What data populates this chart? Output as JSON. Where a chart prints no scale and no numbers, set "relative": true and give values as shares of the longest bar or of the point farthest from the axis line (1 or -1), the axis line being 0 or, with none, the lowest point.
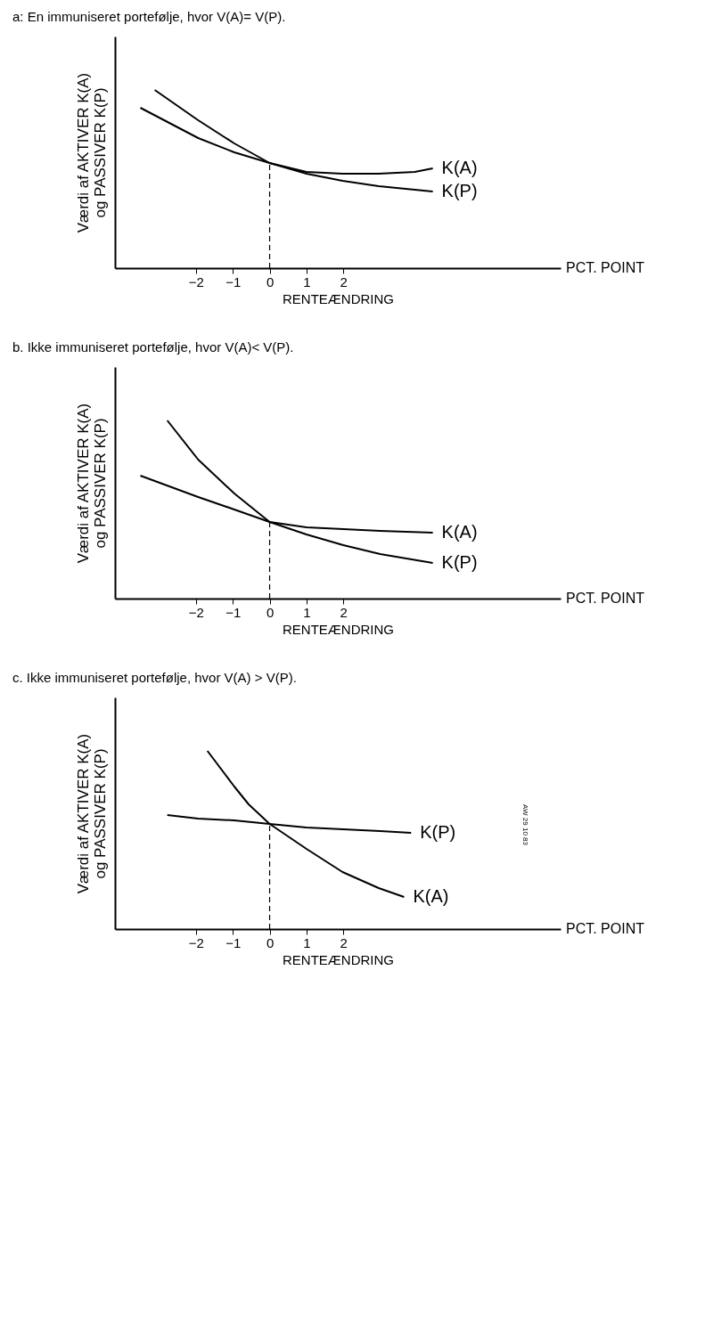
{
  "chart_data": [
    {
      "type": "line",
      "title": "a:   En immuniseret portefølje, hvor V(A)= V(P).",
      "xlabel": "RENTEÆNDRING",
      "ylabel": "Værdi af AKTIVER K(A)\nog PASSIVER K(P)",
      "relative": true,
      "xlim": [
        -4.2,
        7.9
      ],
      "xticks": [
        -2,
        -1,
        0,
        1,
        2
      ],
      "grid": false,
      "legend": false,
      "marker": "none",
      "line_style": "solid",
      "ref_lines": [
        {
          "axis": "x",
          "value": 0,
          "line_style": "dashed"
        }
      ],
      "annotations": [
        "PCT. POINT"
      ],
      "series": [
        {
          "name": "K(A)",
          "color": "#000000",
          "x": [
            -3.12,
            -1.94,
            -0.96,
            0,
            1,
            1.98,
            2.96,
            3.94,
            4.43
          ],
          "values": [
            1,
            0.83,
            0.7,
            0.59,
            0.54,
            0.53,
            0.53,
            0.54,
            0.56
          ]
        },
        {
          "name": "K(P)",
          "color": "#000000",
          "x": [
            -3.51,
            -1.94,
            -0.96,
            0,
            1,
            1.98,
            2.96,
            4.43
          ],
          "values": [
            0.9,
            0.73,
            0.65,
            0.59,
            0.53,
            0.49,
            0.46,
            0.43
          ]
        }
      ]
    },
    {
      "type": "line",
      "title": "b.   Ikke immuniseret portefølje, hvor V(A)< V(P).",
      "xlabel": "RENTEÆNDRING",
      "ylabel": "Værdi af AKTIVER K(A)\nog PASSIVER K(P)",
      "relative": true,
      "xlim": [
        -4.2,
        7.9
      ],
      "xticks": [
        -2,
        -1,
        0,
        1,
        2
      ],
      "grid": false,
      "legend": false,
      "marker": "none",
      "line_style": "solid",
      "ref_lines": [
        {
          "axis": "x",
          "value": 0,
          "line_style": "dashed"
        }
      ],
      "annotations": [
        "PCT. POINT"
      ],
      "series": [
        {
          "name": "K(A)",
          "color": "#000000",
          "x": [
            -3.51,
            -1.94,
            -0.96,
            0,
            1,
            2,
            3,
            4.43
          ],
          "values": [
            0.69,
            0.57,
            0.5,
            0.43,
            0.4,
            0.39,
            0.38,
            0.37
          ]
        },
        {
          "name": "K(P)",
          "color": "#000000",
          "x": [
            -2.78,
            -1.94,
            -0.96,
            0,
            1,
            2,
            3,
            4.43
          ],
          "values": [
            1,
            0.78,
            0.59,
            0.43,
            0.36,
            0.3,
            0.25,
            0.2
          ]
        }
      ]
    },
    {
      "type": "line",
      "title": "c.   Ikke immuniseret portefølje, hvor V(A) > V(P).",
      "xlabel": "RENTEÆNDRING",
      "ylabel": "Værdi af AKTIVER K(A)\nog PASSIVER K(P)",
      "relative": true,
      "xlim": [
        -4.2,
        7.9
      ],
      "xticks": [
        -2,
        -1,
        0,
        1,
        2
      ],
      "grid": false,
      "legend": false,
      "marker": "none",
      "line_style": "solid",
      "ref_lines": [
        {
          "axis": "x",
          "value": 0,
          "line_style": "dashed"
        }
      ],
      "annotations": [
        "PCT. POINT",
        "AW 29 10 83"
      ],
      "series": [
        {
          "name": "K(P)",
          "color": "#000000",
          "x": [
            -2.78,
            -1.94,
            -0.96,
            0,
            1,
            2,
            3,
            3.84
          ],
          "values": [
            0.64,
            0.62,
            0.61,
            0.59,
            0.57,
            0.56,
            0.55,
            0.54
          ]
        },
        {
          "name": "K(A)",
          "color": "#000000",
          "x": [
            -1.69,
            -0.96,
            -0.57,
            0,
            1,
            1.98,
            2.96,
            3.65
          ],
          "values": [
            1,
            0.8,
            0.7,
            0.59,
            0.45,
            0.32,
            0.23,
            0.18
          ]
        }
      ]
    }
  ]
}
